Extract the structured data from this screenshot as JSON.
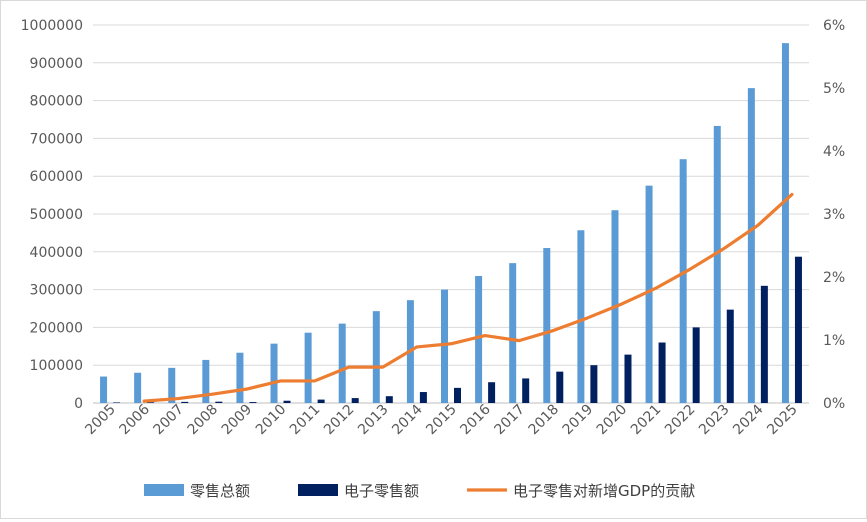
{
  "chart_data": {
    "type": "bar+line",
    "categories": [
      "2005",
      "2006",
      "2007",
      "2008",
      "2009",
      "2010",
      "2011",
      "2012",
      "2013",
      "2014",
      "2015",
      "2016",
      "2017",
      "2018",
      "2019",
      "2020",
      "2021",
      "2022",
      "2023",
      "2024",
      "2025"
    ],
    "series": [
      {
        "name": "零售总额",
        "type": "bar",
        "axis": "left",
        "color": "#5b9bd5",
        "values": [
          70000,
          80000,
          93000,
          114000,
          133000,
          157000,
          186000,
          210000,
          243000,
          272000,
          300000,
          336000,
          370000,
          410000,
          457000,
          510000,
          575000,
          645000,
          733000,
          833000,
          952000
        ]
      },
      {
        "name": "电子零售额",
        "type": "bar",
        "axis": "left",
        "color": "#002060",
        "values": [
          1500,
          2000,
          3000,
          3500,
          2500,
          6000,
          9000,
          13000,
          18000,
          29000,
          40000,
          55000,
          65000,
          83000,
          100000,
          128000,
          160000,
          200000,
          247000,
          310000,
          387000
        ]
      },
      {
        "name": "电子零售对新增GDP的贡献",
        "type": "line",
        "axis": "right",
        "color": "#ed7d31",
        "x": [
          "2006",
          "2007",
          "2008",
          "2009",
          "2010",
          "2011",
          "2012",
          "2013",
          "2014",
          "2015",
          "2016",
          "2017",
          "2018",
          "2019",
          "2020",
          "2021",
          "2022",
          "2023",
          "2024",
          "2025"
        ],
        "values": [
          0.0003,
          0.0007,
          0.0014,
          0.0022,
          0.0035,
          0.0035,
          0.0057,
          0.0057,
          0.0089,
          0.0094,
          0.0107,
          0.0099,
          0.0115,
          0.0135,
          0.0157,
          0.0182,
          0.0212,
          0.0245,
          0.0282,
          0.0331
        ]
      }
    ],
    "y_left": {
      "ylim": [
        0,
        1000000
      ],
      "ticks": [
        "0",
        "100000",
        "200000",
        "300000",
        "400000",
        "500000",
        "600000",
        "700000",
        "800000",
        "900000",
        "1000000"
      ]
    },
    "y_right": {
      "ylim": [
        0,
        0.06
      ],
      "ticks": [
        "0%",
        "1%",
        "2%",
        "3%",
        "4%",
        "5%",
        "6%"
      ]
    },
    "grid": true,
    "legend_position": "bottom"
  }
}
